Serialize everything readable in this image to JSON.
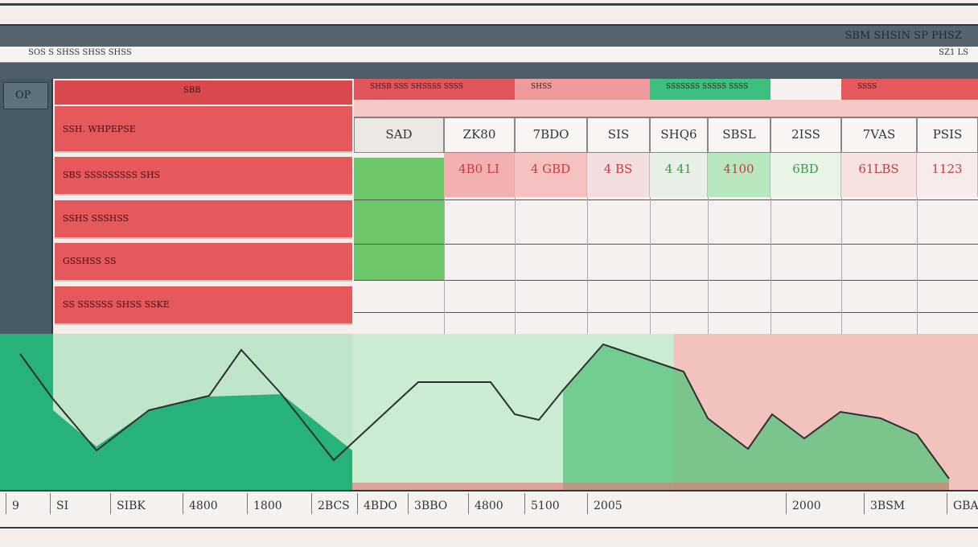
{
  "header": {
    "title_right": "SBM SHSIN SP PHSZ",
    "subtitle_left": "SOS S  SHSS SHSS SHSS",
    "subtitle_right": "SZ1 LS"
  },
  "sidebar": {
    "label": "OP"
  },
  "left_panel": {
    "header": "SBB",
    "rows": [
      "SSH. WHPEPSE",
      "SBS SSSSSSSSS SHS",
      "SSHS SSSHSS",
      "GSSHSS SS",
      "SS SSSSSS SHSS SSKE"
    ]
  },
  "table": {
    "header_texts": [
      "SHSB SSS SHSSSS SSSS",
      "SHSS",
      "SSSSSSS SSSSS SSSS",
      "SSSS"
    ],
    "columns": [
      "SAD",
      "ZK80",
      "7BDO",
      "SIS",
      "SHQ6",
      "SBSL",
      "2ISS",
      "7VAS",
      "PSIS"
    ],
    "values": [
      "4B0 LI",
      "4 GBD",
      "4 BS",
      "4 41",
      "4100",
      "6BD",
      "61LBS",
      "1123"
    ]
  },
  "chart": {
    "x_labels": [
      "9",
      "SI",
      "SIBK",
      "4800",
      "1800",
      "2BCS",
      "4BDO",
      "3BBO",
      "4800",
      "5100",
      "2005",
      "2000",
      "3BSM",
      "GBAI"
    ]
  }
}
